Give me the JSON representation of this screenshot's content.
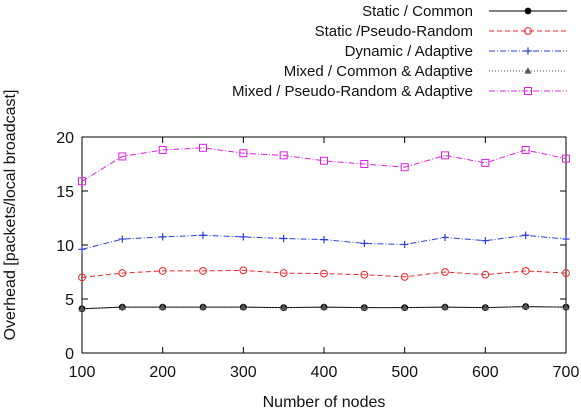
{
  "chart_data": {
    "type": "line",
    "title": "",
    "xlabel": "Number of nodes",
    "ylabel": "Overhead [packets/local broadcast]",
    "xlim": [
      100,
      700
    ],
    "ylim": [
      0,
      20
    ],
    "xticks": [
      100,
      200,
      300,
      400,
      500,
      600,
      700
    ],
    "yticks": [
      0,
      5,
      10,
      15,
      20
    ],
    "grid": false,
    "legend_position": "top-right",
    "x": [
      100,
      150,
      200,
      250,
      300,
      350,
      400,
      450,
      500,
      550,
      600,
      650,
      700
    ],
    "series": [
      {
        "name": "Static / Common",
        "color": "#000000",
        "marker": "filled-circle",
        "line_style": "solid",
        "values": [
          4.1,
          4.25,
          4.25,
          4.25,
          4.25,
          4.2,
          4.25,
          4.2,
          4.2,
          4.25,
          4.2,
          4.3,
          4.25
        ]
      },
      {
        "name": "Static /Pseudo-Random",
        "color": "#e8262a",
        "marker": "open-circle",
        "line_style": "dashed",
        "values": [
          7.0,
          7.4,
          7.6,
          7.6,
          7.65,
          7.4,
          7.35,
          7.25,
          7.05,
          7.5,
          7.25,
          7.6,
          7.4
        ]
      },
      {
        "name": "Dynamic / Adaptive",
        "color": "#2a3ed6",
        "marker": "plus",
        "line_style": "dash-dot",
        "values": [
          9.6,
          10.55,
          10.75,
          10.9,
          10.75,
          10.6,
          10.5,
          10.15,
          10.05,
          10.7,
          10.4,
          10.9,
          10.55
        ]
      },
      {
        "name": "Mixed / Common & Adaptive",
        "color": "#555555",
        "marker": "triangle",
        "line_style": "dotted",
        "values": [
          4.1,
          4.25,
          4.25,
          4.25,
          4.25,
          4.2,
          4.25,
          4.2,
          4.2,
          4.25,
          4.2,
          4.3,
          4.25
        ]
      },
      {
        "name": "Mixed / Pseudo-Random & Adaptive",
        "color": "#e020e0",
        "marker": "open-square",
        "line_style": "dash-dot",
        "values": [
          15.9,
          18.2,
          18.8,
          19.0,
          18.5,
          18.3,
          17.8,
          17.5,
          17.2,
          18.3,
          17.6,
          18.8,
          18.0
        ]
      }
    ]
  }
}
